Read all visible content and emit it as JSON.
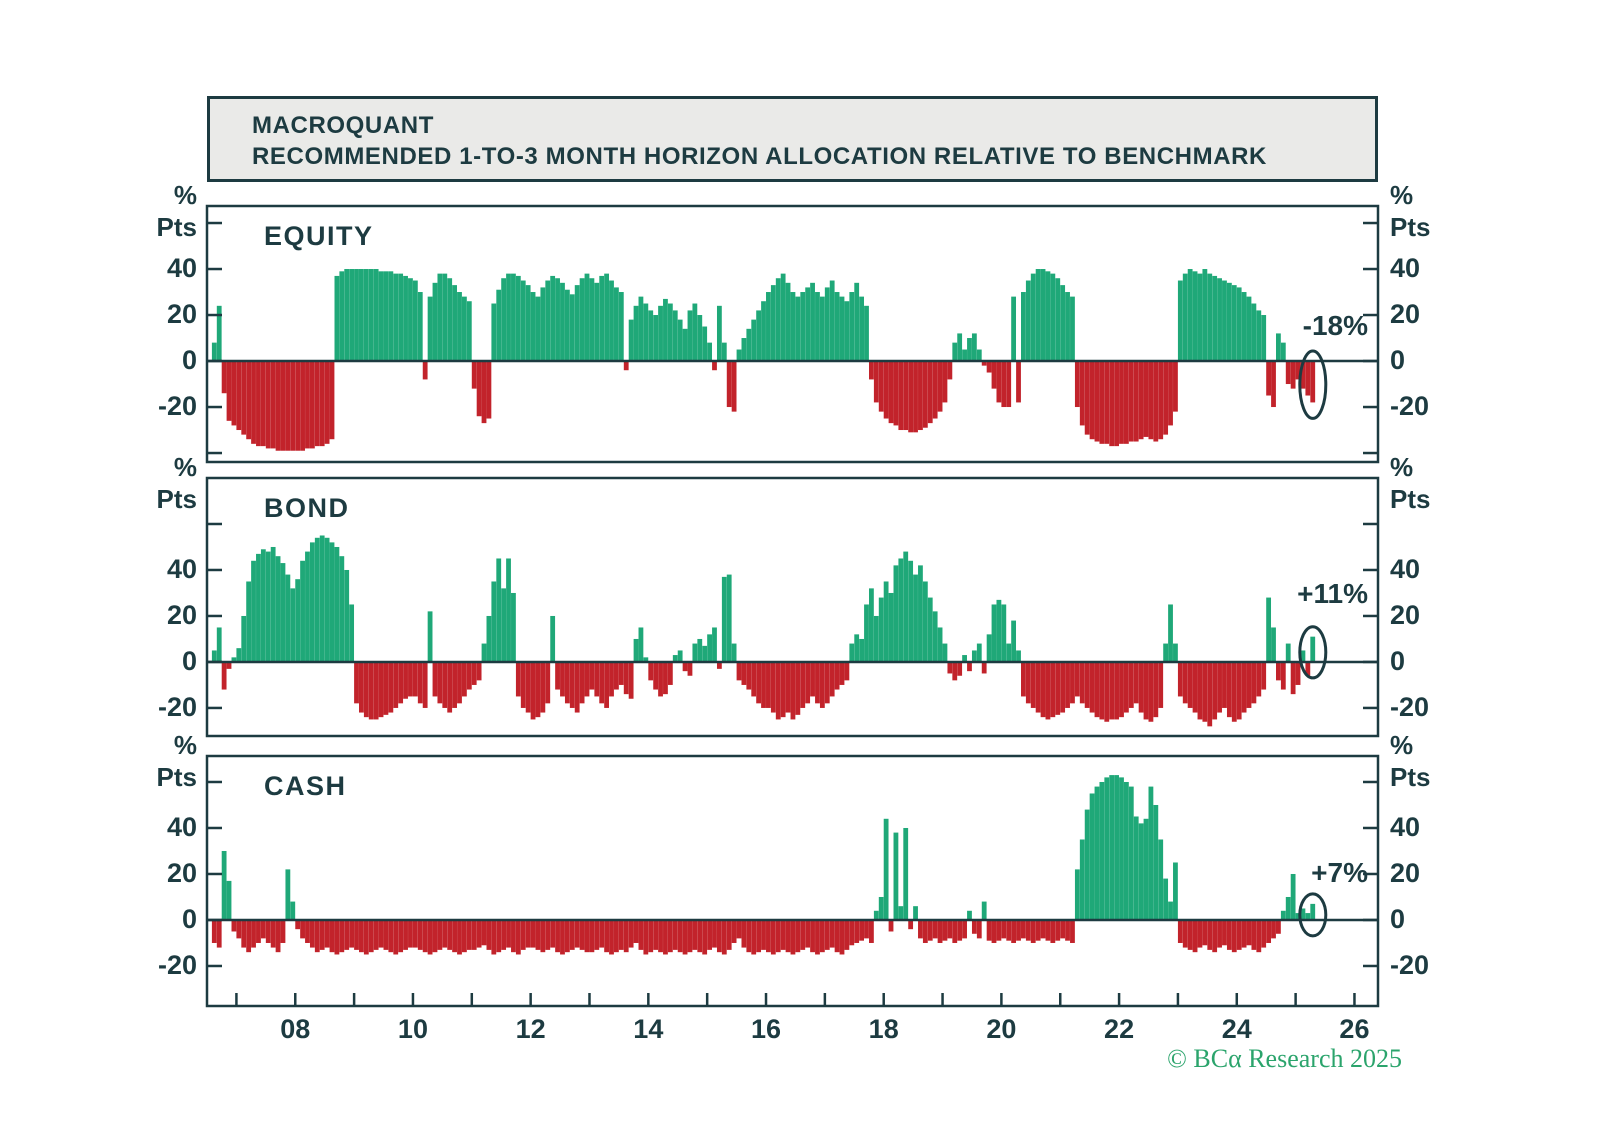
{
  "title_box": {
    "line1": "MACROQUANT",
    "line2": "RECOMMENDED 1-TO-3 MONTH HORIZON ALLOCATION RELATIVE TO BENCHMARK"
  },
  "footer": {
    "copyright": "© BCα Research 2025"
  },
  "colors": {
    "positive": "#1FA878",
    "negative": "#C2232B",
    "axis": "#1D3B41",
    "title_bg": "#EAEAE8",
    "copyright_green": "#2BA46C"
  },
  "axis": {
    "x_range": [
      2006.5,
      2026.4
    ],
    "year_tick_start": 2007,
    "year_tick_end": 2026,
    "year_labels": [
      {
        "year": 2008,
        "label": "08"
      },
      {
        "year": 2010,
        "label": "10"
      },
      {
        "year": 2012,
        "label": "12"
      },
      {
        "year": 2014,
        "label": "14"
      },
      {
        "year": 2016,
        "label": "16"
      },
      {
        "year": 2018,
        "label": "18"
      },
      {
        "year": 2020,
        "label": "20"
      },
      {
        "year": 2022,
        "label": "22"
      },
      {
        "year": 2024,
        "label": "24"
      },
      {
        "year": 2026,
        "label": "26"
      }
    ],
    "unit_top": "%",
    "unit_bottom": "Pts"
  },
  "chart_data": [
    {
      "type": "bar",
      "title": "EQUITY",
      "unit": "% Pts relative to benchmark",
      "series_start": "2006-08",
      "frequency": "monthly",
      "ylim": [
        -43.9,
        67.4
      ],
      "yticks_labeled": [
        40,
        20,
        0,
        -20
      ],
      "yticks_minor": [
        60,
        -40
      ],
      "annotation": {
        "label": "-18%",
        "latest_value": -18,
        "circled": true
      },
      "values": [
        8,
        24,
        -14,
        -26,
        -28,
        -30,
        -32,
        -34,
        -36,
        -37,
        -37,
        -38,
        -38,
        -39,
        -39,
        -39,
        -39,
        -39,
        -39,
        -38,
        -38,
        -37,
        -37,
        -36,
        -34,
        37,
        39,
        40,
        40,
        40,
        40,
        40,
        40,
        40,
        39,
        39,
        39,
        38,
        38,
        37,
        36,
        35,
        30,
        -8,
        28,
        34,
        38,
        38,
        36,
        33,
        30,
        28,
        26,
        -12,
        -24,
        -27,
        -25,
        25,
        31,
        36,
        38,
        38,
        37,
        35,
        33,
        30,
        28,
        32,
        35,
        37,
        36,
        34,
        31,
        29,
        33,
        36,
        38,
        36,
        34,
        37,
        38,
        35,
        32,
        30,
        -4,
        18,
        24,
        28,
        25,
        22,
        20,
        24,
        27,
        25,
        22,
        18,
        14,
        22,
        25,
        20,
        15,
        8,
        -4,
        24,
        8,
        -20,
        -22,
        5,
        10,
        14,
        18,
        22,
        26,
        30,
        33,
        36,
        38,
        34,
        30,
        28,
        30,
        32,
        34,
        30,
        28,
        32,
        35,
        30,
        28,
        26,
        30,
        34,
        28,
        24,
        -8,
        -18,
        -22,
        -25,
        -27,
        -28,
        -30,
        -30,
        -31,
        -31,
        -30,
        -29,
        -27,
        -25,
        -22,
        -18,
        -8,
        8,
        12,
        5,
        10,
        12,
        5,
        -2,
        -5,
        -12,
        -18,
        -20,
        -20,
        28,
        -18,
        30,
        35,
        38,
        40,
        40,
        39,
        38,
        36,
        33,
        30,
        28,
        -20,
        -28,
        -32,
        -34,
        -35,
        -36,
        -36,
        -37,
        -37,
        -36,
        -36,
        -35,
        -35,
        -34,
        -33,
        -34,
        -35,
        -34,
        -32,
        -28,
        -22,
        35,
        38,
        40,
        39,
        38,
        40,
        38,
        37,
        36,
        35,
        34,
        33,
        32,
        30,
        28,
        25,
        22,
        20,
        -15,
        -20,
        12,
        8,
        -10,
        -12,
        -8,
        -12,
        -15,
        -18
      ]
    },
    {
      "type": "bar",
      "title": "BOND",
      "unit": "% Pts relative to benchmark",
      "series_start": "2006-08",
      "frequency": "monthly",
      "ylim": [
        -32.2,
        80
      ],
      "yticks_labeled": [
        40,
        20,
        0,
        -20
      ],
      "yticks_minor": [
        60
      ],
      "annotation": {
        "label": "+11%",
        "latest_value": 11,
        "circled": true
      },
      "values": [
        5,
        15,
        -12,
        -3,
        2,
        6,
        20,
        35,
        44,
        47,
        49,
        48,
        50,
        46,
        43,
        38,
        32,
        36,
        44,
        48,
        52,
        54,
        55,
        54,
        52,
        50,
        46,
        40,
        25,
        -18,
        -22,
        -24,
        -25,
        -25,
        -24,
        -23,
        -22,
        -20,
        -18,
        -16,
        -15,
        -15,
        -18,
        -20,
        22,
        -15,
        -18,
        -20,
        -22,
        -20,
        -18,
        -15,
        -12,
        -10,
        -8,
        8,
        20,
        35,
        45,
        32,
        45,
        30,
        -15,
        -20,
        -22,
        -25,
        -24,
        -22,
        -18,
        20,
        -12,
        -15,
        -18,
        -20,
        -22,
        -18,
        -15,
        -12,
        -15,
        -18,
        -20,
        -15,
        -12,
        -10,
        -14,
        -16,
        10,
        15,
        2,
        -8,
        -12,
        -15,
        -14,
        -10,
        3,
        5,
        -4,
        -6,
        8,
        10,
        7,
        12,
        15,
        -3,
        37,
        38,
        8,
        -8,
        -10,
        -12,
        -15,
        -18,
        -20,
        -20,
        -22,
        -25,
        -24,
        -22,
        -25,
        -23,
        -20,
        -18,
        -15,
        -18,
        -20,
        -18,
        -15,
        -12,
        -10,
        -8,
        8,
        12,
        10,
        25,
        32,
        20,
        28,
        35,
        30,
        42,
        45,
        48,
        44,
        38,
        42,
        35,
        28,
        22,
        15,
        8,
        -5,
        -8,
        -6,
        3,
        -4,
        5,
        8,
        -5,
        12,
        25,
        27,
        25,
        8,
        18,
        5,
        -15,
        -18,
        -20,
        -22,
        -24,
        -25,
        -24,
        -23,
        -22,
        -20,
        -18,
        -15,
        -18,
        -20,
        -22,
        -24,
        -25,
        -26,
        -25,
        -25,
        -24,
        -22,
        -20,
        -18,
        -22,
        -25,
        -26,
        -24,
        -20,
        8,
        25,
        8,
        -15,
        -18,
        -20,
        -22,
        -25,
        -26,
        -28,
        -25,
        -22,
        -20,
        -24,
        -26,
        -25,
        -22,
        -20,
        -18,
        -15,
        -12,
        28,
        15,
        -8,
        -12,
        8,
        -14,
        -10,
        5,
        -6,
        11
      ]
    },
    {
      "type": "bar",
      "title": "CASH",
      "unit": "% Pts relative to benchmark",
      "series_start": "2006-08",
      "frequency": "monthly",
      "ylim": [
        -37.4,
        71.3
      ],
      "yticks_labeled": [
        40,
        20,
        0,
        -20
      ],
      "yticks_minor": [
        60
      ],
      "annotation": {
        "label": "+7%",
        "latest_value": 7,
        "circled": true
      },
      "values": [
        -10,
        -12,
        30,
        17,
        -5,
        -8,
        -12,
        -14,
        -12,
        -10,
        -8,
        -10,
        -12,
        -14,
        -10,
        22,
        8,
        -4,
        -8,
        -10,
        -12,
        -14,
        -13,
        -12,
        -14,
        -15,
        -14,
        -13,
        -12,
        -13,
        -14,
        -15,
        -14,
        -13,
        -12,
        -13,
        -14,
        -15,
        -14,
        -13,
        -12,
        -12,
        -13,
        -14,
        -15,
        -14,
        -13,
        -12,
        -13,
        -14,
        -15,
        -14,
        -13,
        -13,
        -12,
        -11,
        -13,
        -15,
        -14,
        -13,
        -12,
        -14,
        -15,
        -13,
        -12,
        -12,
        -13,
        -14,
        -13,
        -12,
        -14,
        -15,
        -14,
        -13,
        -12,
        -13,
        -14,
        -14,
        -13,
        -12,
        -14,
        -15,
        -14,
        -13,
        -14,
        -12,
        -10,
        -13,
        -15,
        -14,
        -13,
        -14,
        -15,
        -14,
        -13,
        -14,
        -15,
        -14,
        -13,
        -14,
        -15,
        -13,
        -12,
        -14,
        -15,
        -13,
        -10,
        -8,
        -12,
        -14,
        -15,
        -14,
        -13,
        -14,
        -15,
        -14,
        -13,
        -14,
        -15,
        -14,
        -13,
        -12,
        -14,
        -15,
        -14,
        -13,
        -12,
        -14,
        -15,
        -13,
        -11,
        -10,
        -9,
        -8,
        -10,
        4,
        10,
        44,
        -5,
        38,
        6,
        40,
        -4,
        6,
        -8,
        -10,
        -9,
        -8,
        -10,
        -9,
        -8,
        -10,
        -9,
        -8,
        4,
        -6,
        -8,
        8,
        -9,
        -10,
        -9,
        -8,
        -9,
        -10,
        -9,
        -8,
        -9,
        -10,
        -9,
        -8,
        -9,
        -10,
        -9,
        -8,
        -9,
        -10,
        22,
        35,
        48,
        55,
        58,
        60,
        62,
        63,
        63,
        62,
        60,
        58,
        45,
        42,
        44,
        58,
        50,
        35,
        18,
        8,
        25,
        -10,
        -12,
        -13,
        -14,
        -12,
        -11,
        -13,
        -14,
        -12,
        -11,
        -13,
        -14,
        -13,
        -12,
        -11,
        -13,
        -14,
        -12,
        -10,
        -8,
        -6,
        4,
        10,
        20,
        3,
        5,
        3,
        7
      ]
    }
  ]
}
